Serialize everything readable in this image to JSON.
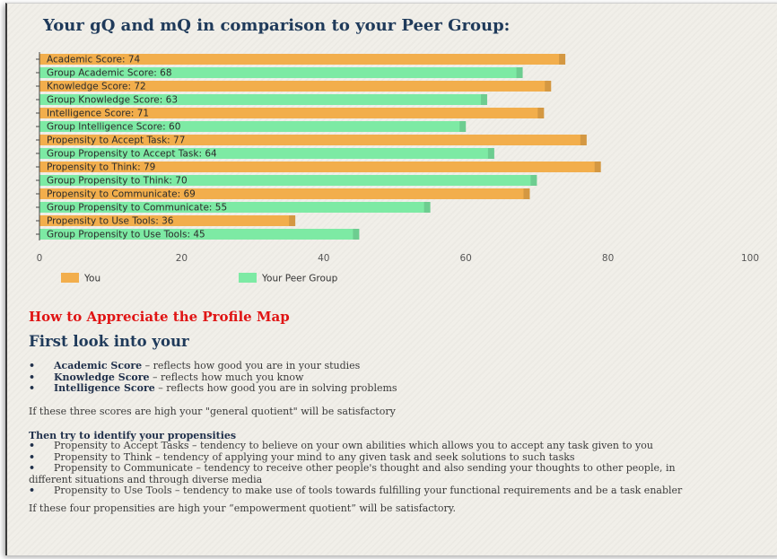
{
  "chart_data": {
    "type": "bar",
    "orientation": "horizontal",
    "title": "Your gQ and mQ in comparison to your Peer Group:",
    "bars": [
      {
        "label": "Academic Score: 74",
        "value": 74,
        "series": "You"
      },
      {
        "label": "Group Academic Score: 68",
        "value": 68,
        "series": "Your Peer Group"
      },
      {
        "label": "Knowledge Score: 72",
        "value": 72,
        "series": "You"
      },
      {
        "label": "Group Knowledge Score: 63",
        "value": 63,
        "series": "Your Peer Group"
      },
      {
        "label": "Intelligence Score: 71",
        "value": 71,
        "series": "You"
      },
      {
        "label": "Group Intelligence Score: 60",
        "value": 60,
        "series": "Your Peer Group"
      },
      {
        "label": "Propensity to Accept Task: 77",
        "value": 77,
        "series": "You"
      },
      {
        "label": "Group Propensity to Accept Task: 64",
        "value": 64,
        "series": "Your Peer Group"
      },
      {
        "label": "Propensity to Think: 79",
        "value": 79,
        "series": "You"
      },
      {
        "label": "Group Propensity to Think: 70",
        "value": 70,
        "series": "Your Peer Group"
      },
      {
        "label": "Propensity to Communicate: 69",
        "value": 69,
        "series": "You"
      },
      {
        "label": "Group Propensity to Communicate: 55",
        "value": 55,
        "series": "Your Peer Group"
      },
      {
        "label": "Propensity to Use Tools: 36",
        "value": 36,
        "series": "You"
      },
      {
        "label": "Group Propensity to Use Tools: 45",
        "value": 45,
        "series": "Your Peer Group"
      }
    ],
    "xlim": [
      0,
      100
    ],
    "xticks": [
      "0",
      "20",
      "40",
      "60",
      "80",
      "100"
    ],
    "legend": [
      {
        "name": "You",
        "color": "#f2ae4c"
      },
      {
        "name": "Your Peer Group",
        "color": "#7deaa4"
      }
    ],
    "legend_placement": "bottom-left",
    "grid": false
  },
  "text": {
    "section_title": "How to Appreciate the Profile Map",
    "sub_title": "First look into your",
    "scores": [
      {
        "term": "Academic Score",
        "desc": " – reflects how good you are in your studies"
      },
      {
        "term": "Knowledge Score",
        "desc": " – reflects how much you know"
      },
      {
        "term": "Intelligence Score",
        "desc": " – reflects how good you are in solving problems"
      }
    ],
    "gq_note": "If these three scores are high your \"general quotient\" will be satisfactory",
    "prop_title": "Then try to identify your propensities",
    "propensities": [
      "Propensity to Accept Tasks – tendency to believe on your own abilities which allows you to accept any task given to you",
      "Propensity to Think – tendency of applying your mind to any given task and seek solutions to such tasks",
      "Propensity to Communicate – tendency to receive other people's thought and also sending your thoughts to other people, in",
      "Propensity to Use Tools – tendency to make use of tools towards fulfilling your functional requirements and be a task enabler"
    ],
    "propensity_continuation": "different situations and through diverse media",
    "mq_note": "If these four propensities are high your “empowerment quotient” will be satisfactory."
  }
}
